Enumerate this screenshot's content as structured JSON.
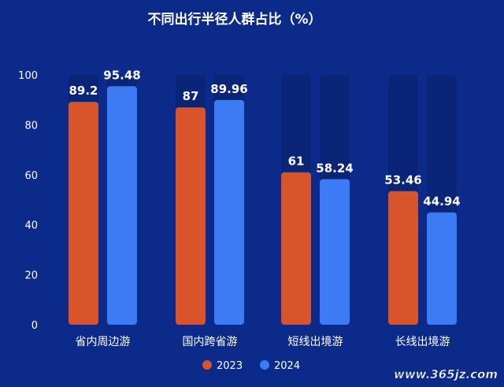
{
  "chart_data": {
    "type": "bar",
    "title": "不同出行半径人群占比（%）",
    "categories": [
      "省内周边游",
      "国内跨省游",
      "短线出境游",
      "长线出境游"
    ],
    "series": [
      {
        "name": "2023",
        "values": [
          89.2,
          87,
          61,
          53.46
        ],
        "color": "#d9532b"
      },
      {
        "name": "2024",
        "values": [
          95.48,
          89.96,
          58.24,
          44.94
        ],
        "color": "#3d7bf5"
      }
    ],
    "data_labels": [
      [
        "89.2",
        "87",
        "61",
        "53.46"
      ],
      [
        "95.48",
        "89.96",
        "58.24",
        "44.94"
      ]
    ],
    "ylim": [
      0,
      100
    ],
    "yticks": [
      0,
      20,
      40,
      60,
      80,
      100
    ],
    "xlabel": "",
    "ylabel": "",
    "grid": false,
    "legend": "bottom-center",
    "track_color": "#0a2578",
    "background": "#0b2a8a"
  },
  "watermark": "www.365jz.com"
}
